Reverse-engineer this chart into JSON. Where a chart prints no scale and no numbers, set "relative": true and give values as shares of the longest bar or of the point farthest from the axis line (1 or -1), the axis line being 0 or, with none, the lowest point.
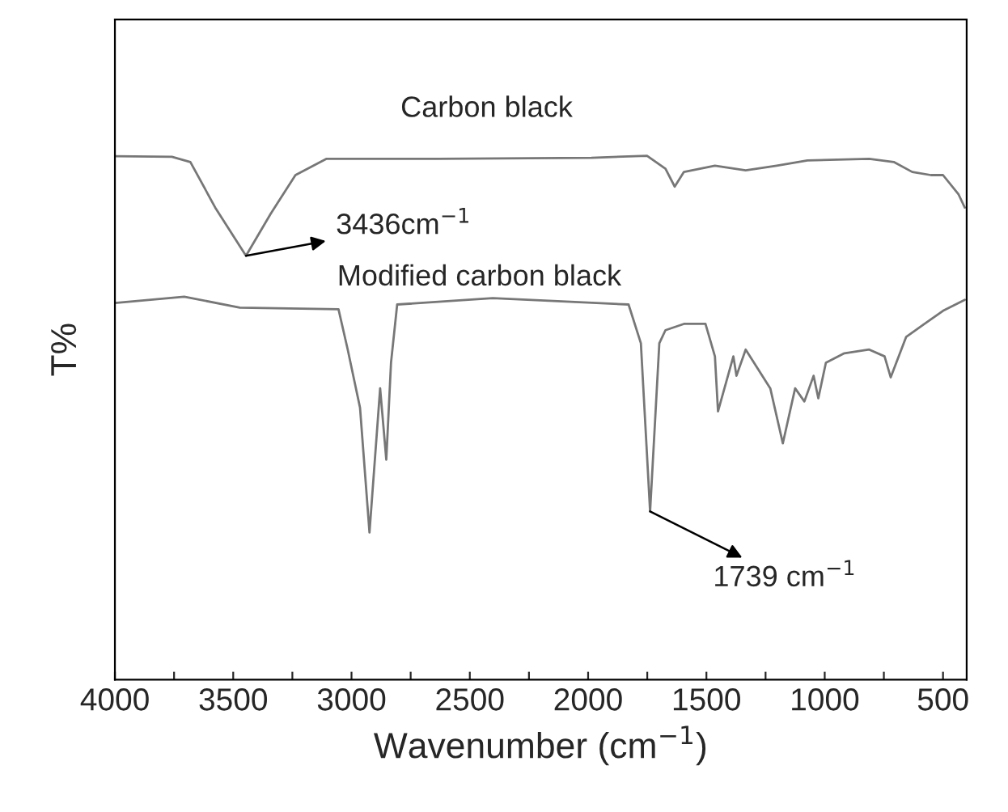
{
  "chart_data": {
    "type": "line",
    "relative": true,
    "xlabel": "Wavenumber (cm$^{−1}$)",
    "ylabel": "T%",
    "xlim": [
      4000,
      400
    ],
    "xticks": [
      4000,
      {
        "value": 3750,
        "label": null
      },
      3500,
      {
        "value": 3250,
        "label": null
      },
      3000,
      {
        "value": 2750,
        "label": null
      },
      2500,
      {
        "value": 2250,
        "label": null
      },
      2000,
      {
        "value": 1750,
        "label": null
      },
      1500,
      {
        "value": 1250,
        "label": null
      },
      1000,
      {
        "value": 750,
        "label": null
      },
      500
    ],
    "tick_labels": "x",
    "grid": false,
    "legend": false,
    "marker": "none",
    "line_style": "solid",
    "series": [
      {
        "name": "Carbon black",
        "color": "#777777",
        "x": [
          4000,
          3759,
          3681,
          3576,
          3446,
          3342,
          3237,
          3107,
          2638,
          1986,
          1751,
          1673,
          1634,
          1595,
          1464,
          1334,
          1203,
          1073,
          812,
          708,
          630,
          551,
          500,
          434,
          408
        ],
        "values": [
          0.999,
          0.998,
          0.988,
          0.901,
          0.809,
          0.889,
          0.963,
          0.994,
          0.994,
          0.996,
          1.0,
          0.975,
          0.941,
          0.969,
          0.981,
          0.972,
          0.981,
          0.991,
          0.994,
          0.988,
          0.969,
          0.963,
          0.963,
          0.926,
          0.901
        ]
      },
      {
        "name": "Modified carbon black",
        "color": "#777777",
        "x": [
          4000,
          3707,
          3472,
          3055,
          3016,
          2964,
          2924,
          2879,
          2853,
          2833,
          2807,
          2403,
          1829,
          1777,
          1738,
          1699,
          1673,
          1595,
          1504,
          1464,
          1451,
          1386,
          1373,
          1334,
          1230,
          1177,
          1125,
          1086,
          1047,
          1027,
          995,
          917,
          812,
          747,
          721,
          656,
          578,
          500,
          408
        ],
        "values": [
          0.719,
          0.731,
          0.71,
          0.707,
          0.63,
          0.519,
          0.281,
          0.556,
          0.42,
          0.605,
          0.716,
          0.728,
          0.716,
          0.642,
          0.321,
          0.642,
          0.667,
          0.679,
          0.679,
          0.617,
          0.512,
          0.617,
          0.58,
          0.63,
          0.556,
          0.451,
          0.556,
          0.531,
          0.58,
          0.537,
          0.605,
          0.623,
          0.63,
          0.617,
          0.577,
          0.654,
          0.679,
          0.704,
          0.725
        ]
      }
    ],
    "annotations": [
      {
        "text": "3436cm$^{−1}$",
        "x": 3446,
        "y": 0.809
      },
      {
        "text": "1739 cm$^{−1}$",
        "x": 1738,
        "y": 0.321
      }
    ]
  }
}
